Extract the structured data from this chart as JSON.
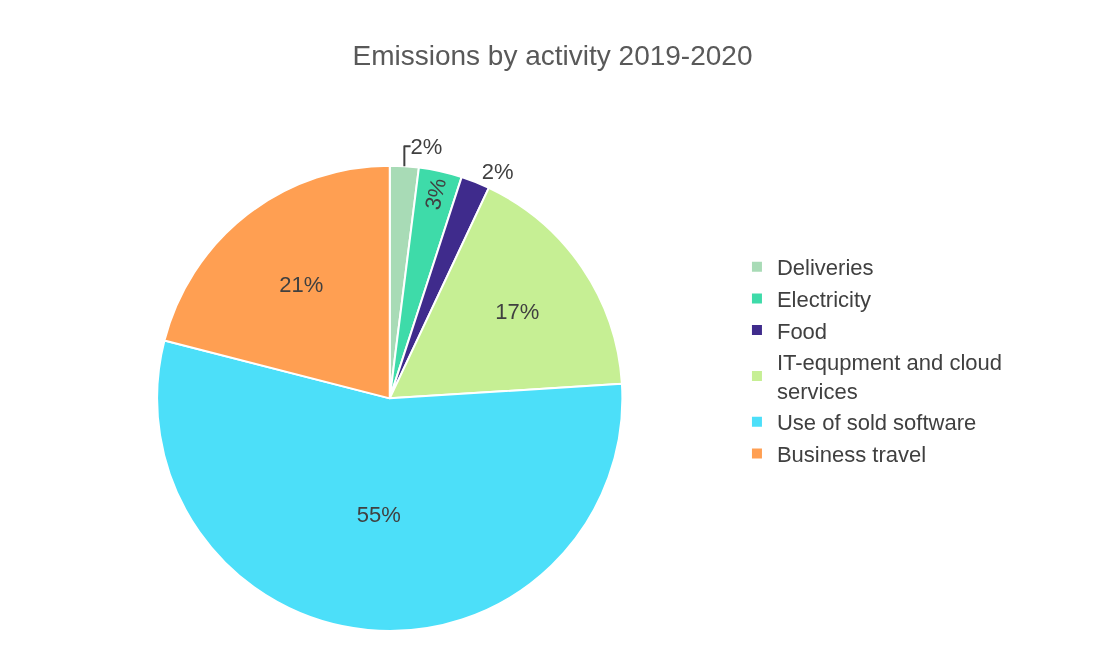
{
  "chart_data": {
    "type": "pie",
    "title": "Emissions by activity 2019-2020",
    "categories": [
      "Deliveries",
      "Electricity",
      "Food",
      "IT-equpment and cloud services",
      "Use of sold software",
      "Business travel"
    ],
    "values": [
      2,
      3,
      2,
      17,
      55,
      21
    ],
    "colors": [
      "#a8dbb6",
      "#3edba9",
      "#3f2b8c",
      "#c6ef94",
      "#4cdff9",
      "#ff9f52"
    ],
    "value_labels": [
      "2%",
      "3%",
      "2%",
      "17%",
      "55%",
      "21%"
    ],
    "legend": "right"
  }
}
